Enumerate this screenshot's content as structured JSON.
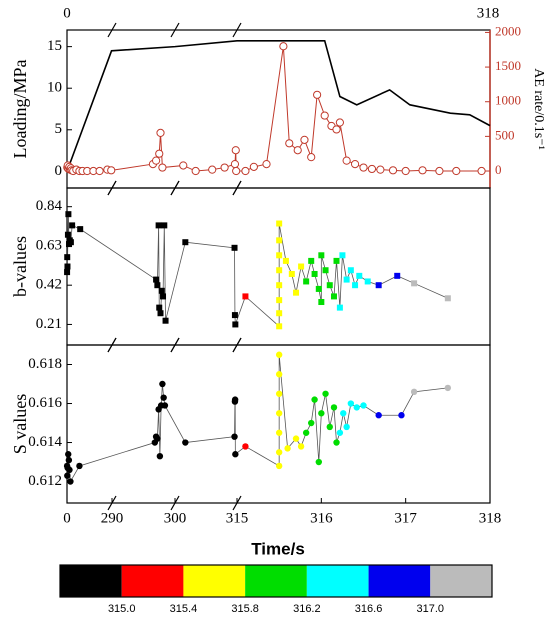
{
  "chart_data": {
    "type": "line",
    "xlabel": "Time/s",
    "xlim": [
      0,
      318
    ],
    "xbreaks": [
      290,
      300,
      315
    ],
    "xticks": [
      0,
      290,
      300,
      315,
      316,
      317,
      318
    ],
    "panels": [
      {
        "type": "line",
        "ylabel": "Loading/MPa",
        "y2label": "AE rate/0.1s⁻¹",
        "ylim": [
          -2,
          17
        ],
        "yticks": [
          0,
          5,
          10,
          15
        ],
        "y2lim": [
          -245,
          2035
        ],
        "y2ticks": [
          0,
          500,
          1000,
          1500,
          2000
        ],
        "y2color": "#c0392b",
        "series": [
          {
            "color": "#000000",
            "marker": "none",
            "x": [
              0,
              287,
              300,
              315,
              315.3,
              316.04,
              316.22,
              316.42,
              316.81,
              317.05,
              317.53,
              317.76,
              318
            ],
            "values": [
              0,
              14.5,
              15,
              15.7,
              15.7,
              15.7,
              9,
              8,
              9.8,
              8,
              7,
              6.8,
              5.5
            ]
          },
          {
            "color": "#c0392b",
            "marker": "circle-open",
            "axis": "y2",
            "x": [
              2,
              5,
              10,
              15,
              20,
              25,
              30,
              40,
              60,
              80,
              100,
              130,
              170,
              210,
              260,
              285,
              296.5,
              297,
              297.5,
              297.7,
              298,
              302,
              305,
              309,
              312,
              314.5,
              314.7,
              314.8,
              315.1,
              315.2,
              315.35,
              315.55,
              315.62,
              315.72,
              315.8,
              315.88,
              315.95,
              316.04,
              316.12,
              316.18,
              316.22,
              316.3,
              316.4,
              316.5,
              316.6,
              316.7,
              316.85,
              317,
              317.2,
              317.4,
              317.6,
              317.9
            ],
            "values": [
              50,
              80,
              30,
              60,
              20,
              40,
              10,
              0,
              20,
              0,
              0,
              0,
              0,
              0,
              20,
              10,
              100,
              150,
              250,
              550,
              50,
              80,
              0,
              20,
              50,
              100,
              300,
              0,
              0,
              60,
              100,
              1800,
              400,
              300,
              450,
              200,
              1100,
              800,
              650,
              600,
              700,
              150,
              100,
              50,
              30,
              20,
              10,
              0,
              10,
              0,
              0,
              0
            ]
          }
        ]
      },
      {
        "type": "scatter",
        "ylabel": "b-values",
        "marker": "square",
        "ylim": [
          0.1,
          0.94
        ],
        "yticks": [
          0.21,
          0.42,
          0.63,
          0.84
        ],
        "x": [
          0.5,
          1.5,
          3,
          6,
          9,
          13,
          18,
          25,
          33,
          85,
          297,
          297.2,
          297.4,
          297.5,
          297.7,
          297.9,
          298.1,
          298.3,
          298.5,
          302.5,
          314.4,
          314.5,
          314.6,
          315.1,
          315.5,
          315.5,
          315.5,
          315.5,
          315.5,
          315.5,
          315.5,
          315.5,
          315.58,
          315.65,
          315.7,
          315.76,
          315.82,
          315.88,
          315.92,
          315.97,
          316,
          316,
          316.05,
          316.1,
          316.15,
          316.18,
          316.22,
          316.25,
          316.3,
          316.35,
          316.4,
          316.45,
          316.55,
          316.68,
          316.9,
          317.1,
          317.5
        ],
        "values": [
          0.49,
          0.57,
          0.52,
          0.69,
          0.8,
          0.64,
          0.66,
          0.65,
          0.74,
          0.72,
          0.45,
          0.42,
          0.74,
          0.3,
          0.27,
          0.39,
          0.36,
          0.74,
          0.23,
          0.65,
          0.62,
          0.26,
          0.21,
          0.36,
          0.2,
          0.27,
          0.34,
          0.42,
          0.5,
          0.58,
          0.66,
          0.75,
          0.55,
          0.48,
          0.38,
          0.52,
          0.44,
          0.55,
          0.48,
          0.4,
          0.33,
          0.58,
          0.5,
          0.42,
          0.36,
          0.55,
          0.3,
          0.58,
          0.45,
          0.5,
          0.42,
          0.47,
          0.44,
          0.42,
          0.47,
          0.43,
          0.35
        ]
      },
      {
        "type": "scatter",
        "ylabel": "S values",
        "marker": "circle",
        "ylim": [
          0.6109,
          0.619
        ],
        "yticks": [
          0.612,
          0.614,
          0.616,
          0.618
        ],
        "x": [
          0.5,
          2,
          4,
          8,
          12,
          16,
          22,
          80,
          296.8,
          297,
          297.2,
          297.4,
          297.6,
          297.8,
          298,
          298.2,
          298.4,
          302.5,
          314.4,
          314.5,
          314.55,
          314.6,
          315.1,
          315.5,
          315.5,
          315.5,
          315.5,
          315.5,
          315.5,
          315.5,
          315.6,
          315.7,
          315.76,
          315.82,
          315.88,
          315.92,
          315.97,
          316,
          316.05,
          316.1,
          316.15,
          316.18,
          316.22,
          316.26,
          316.3,
          316.35,
          316.42,
          316.5,
          316.68,
          316.95,
          317.1,
          317.5
        ],
        "values": [
          0.6128,
          0.6123,
          0.6127,
          0.6134,
          0.6131,
          0.6126,
          0.612,
          0.6128,
          0.614,
          0.6143,
          0.6142,
          0.6157,
          0.6133,
          0.6159,
          0.617,
          0.6163,
          0.6159,
          0.614,
          0.6143,
          0.6161,
          0.6162,
          0.6134,
          0.6138,
          0.6128,
          0.6135,
          0.6145,
          0.6155,
          0.6165,
          0.6175,
          0.6185,
          0.6137,
          0.6142,
          0.6138,
          0.6145,
          0.615,
          0.6162,
          0.613,
          0.6155,
          0.6165,
          0.6148,
          0.6158,
          0.614,
          0.6145,
          0.6155,
          0.6148,
          0.616,
          0.6158,
          0.6159,
          0.6154,
          0.6154,
          0.6166,
          0.6168
        ]
      }
    ],
    "colorbar": {
      "colors": [
        "#000000",
        "#ff0000",
        "#ffff00",
        "#00dd00",
        "#00ffff",
        "#0000ee",
        "#bbbbbb"
      ],
      "ticks": [
        {
          "value": 315,
          "label": "315.0"
        },
        {
          "value": 315.4,
          "label": "315.4"
        },
        {
          "value": 315.8,
          "label": "315.8"
        },
        {
          "value": 316.2,
          "label": "316.2"
        },
        {
          "value": 316.6,
          "label": "316.6"
        },
        {
          "value": 317,
          "label": "317.0"
        }
      ]
    }
  }
}
